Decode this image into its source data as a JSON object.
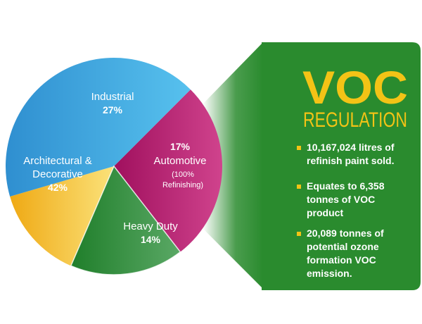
{
  "chart_data": {
    "type": "pie",
    "title": "",
    "slices": [
      {
        "name": "Industrial",
        "value": 27,
        "label": "27%",
        "color": "#b5176f"
      },
      {
        "name": "Automotive",
        "value": 17,
        "label": "17%",
        "note_line1": "(100%",
        "note_line2": "Refinishing)",
        "color": "#2f8f2b"
      },
      {
        "name": "Heavy Duty",
        "value": 14,
        "label": "14%",
        "color": "#f2b718"
      },
      {
        "name": "Architectural & Decorative",
        "name_line1": "Architectural &",
        "name_line2": "Decorative",
        "value": 42,
        "label": "42%",
        "color": "#3aa3df"
      }
    ]
  },
  "panel": {
    "heading": "VOC",
    "subheading": "REGULATION",
    "bullets": [
      {
        "line1": "10,167,024 litres of",
        "line2": "refinish paint sold.",
        "line3": ""
      },
      {
        "line1": "Equates to 6,358",
        "line2": "tonnes of VOC",
        "line3": "product"
      },
      {
        "line1": "20,089 tonnes of",
        "line2": "potential ozone",
        "line3": "formation VOC",
        "line4": "emission."
      }
    ],
    "colors": {
      "background": "#2a8b2e",
      "heading": "#f3c316",
      "text": "#ffffff"
    }
  }
}
